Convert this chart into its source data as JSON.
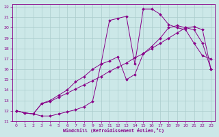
{
  "xlabel": "Windchill (Refroidissement éolien,°C)",
  "bg_color": "#cce8e8",
  "grid_color": "#aacccc",
  "line_color": "#880088",
  "xlim": [
    -0.5,
    23.5
  ],
  "ylim": [
    11,
    22.3
  ],
  "xticks": [
    0,
    1,
    2,
    3,
    4,
    5,
    6,
    7,
    8,
    9,
    10,
    11,
    12,
    13,
    14,
    15,
    16,
    17,
    18,
    19,
    20,
    21,
    22,
    23
  ],
  "yticks": [
    11,
    12,
    13,
    14,
    15,
    16,
    17,
    18,
    19,
    20,
    21,
    22
  ],
  "line1_x": [
    0,
    1,
    2,
    3,
    4,
    5,
    6,
    7,
    8,
    9,
    10,
    11,
    12,
    13,
    14,
    15,
    16,
    17,
    18,
    19,
    20,
    21,
    22,
    23
  ],
  "line1_y": [
    12.0,
    11.8,
    11.7,
    11.5,
    11.5,
    11.7,
    11.9,
    12.1,
    12.4,
    12.9,
    16.5,
    20.7,
    20.9,
    21.1,
    16.5,
    21.8,
    21.8,
    21.3,
    20.3,
    20.0,
    19.8,
    18.5,
    17.3,
    17.0
  ],
  "line2_x": [
    0,
    1,
    2,
    3,
    4,
    5,
    6,
    7,
    8,
    9,
    10,
    11,
    12,
    13,
    14,
    15,
    16,
    17,
    18,
    19,
    20,
    21,
    22,
    23
  ],
  "line2_y": [
    12.0,
    11.8,
    11.7,
    12.7,
    12.9,
    13.3,
    13.7,
    14.1,
    14.5,
    14.9,
    15.3,
    15.8,
    16.2,
    16.6,
    17.1,
    17.5,
    18.0,
    18.5,
    19.0,
    19.5,
    20.0,
    20.1,
    19.8,
    16.0
  ],
  "line3_x": [
    0,
    1,
    2,
    3,
    4,
    5,
    6,
    7,
    8,
    9,
    10,
    11,
    12,
    13,
    14,
    15,
    16,
    17,
    18,
    19,
    20,
    21,
    22,
    23
  ],
  "line3_y": [
    12.0,
    11.8,
    11.7,
    12.7,
    13.0,
    13.5,
    14.0,
    14.8,
    15.3,
    16.0,
    16.5,
    16.8,
    17.2,
    15.0,
    15.5,
    17.5,
    18.2,
    19.0,
    20.0,
    20.2,
    20.0,
    19.8,
    18.5,
    16.0
  ]
}
